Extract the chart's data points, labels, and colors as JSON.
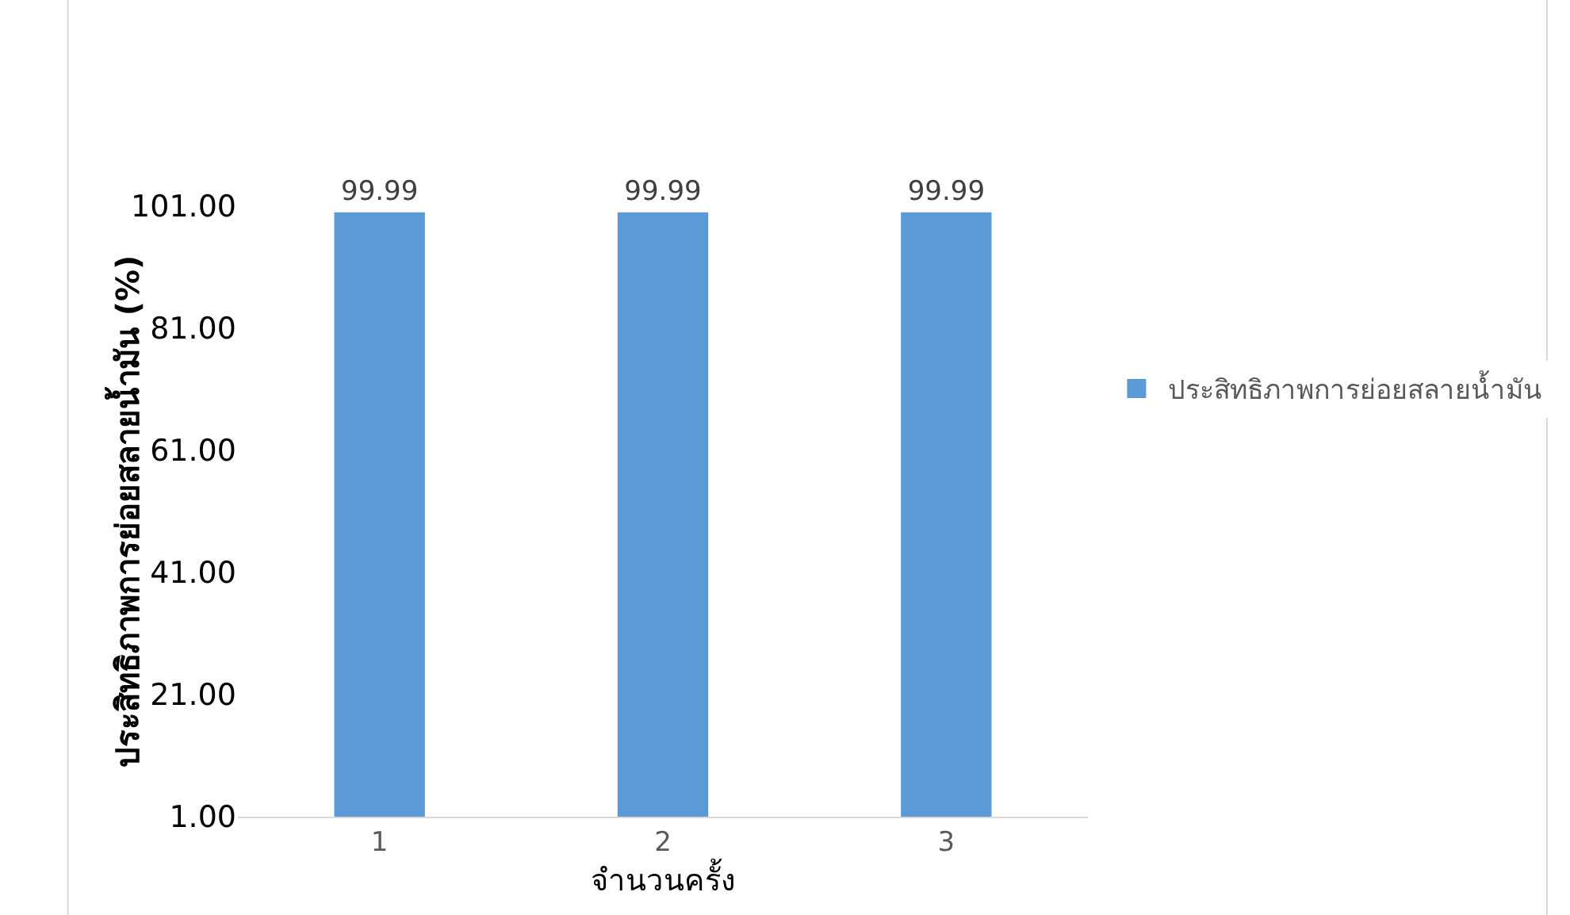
{
  "chart_data": {
    "type": "bar",
    "xlabel": "จำนวนครั้ง",
    "ylabel": "ประสิทธิภาพการย่อยสลายน้ำมัน (%)",
    "categories": [
      "1",
      "2",
      "3"
    ],
    "series": [
      {
        "name": "ประสิทธิภาพการย่อยสลายน้ำมัน",
        "color": "#5b9bd5",
        "values": [
          99.99,
          99.99,
          99.99
        ]
      }
    ],
    "ylim": [
      1,
      101
    ],
    "yticks": [
      {
        "value": 1,
        "label": "1.00"
      },
      {
        "value": 21,
        "label": "21.00"
      },
      {
        "value": 41,
        "label": "41.00"
      },
      {
        "value": 61,
        "label": "61.00"
      },
      {
        "value": 81,
        "label": "81.00"
      },
      {
        "value": 101,
        "label": "101.00"
      }
    ],
    "data_labels": true,
    "grid": false,
    "legend": "right"
  }
}
